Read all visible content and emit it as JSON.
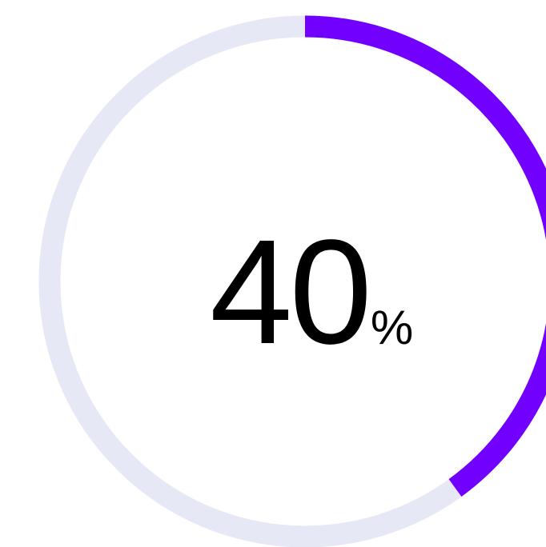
{
  "progress": {
    "value_text": "40",
    "unit_text": "%",
    "fraction": 0.4,
    "colors": {
      "track": "#e6e9f5",
      "fill": "#7100ff",
      "text": "#000000"
    }
  }
}
